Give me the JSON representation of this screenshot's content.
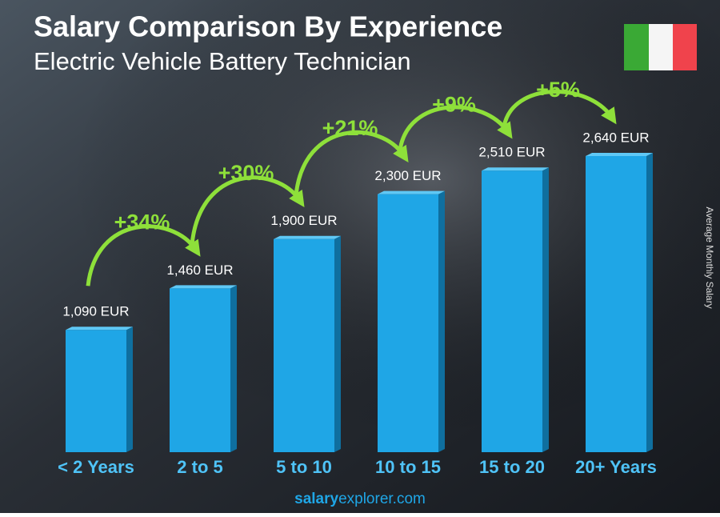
{
  "chart_data": {
    "type": "bar",
    "title": "Salary Comparison By Experience",
    "subtitle": "Electric Vehicle Battery Technician",
    "y_axis_label": "Average Monthly Salary",
    "categories": [
      "< 2 Years",
      "2 to 5",
      "5 to 10",
      "10 to 15",
      "15 to 20",
      "20+ Years"
    ],
    "values": [
      1090,
      1460,
      1900,
      2300,
      2510,
      2640
    ],
    "value_labels": [
      "1,090 EUR",
      "1,460 EUR",
      "1,900 EUR",
      "2,300 EUR",
      "2,510 EUR",
      "2,640 EUR"
    ],
    "color": "#1fa6e6",
    "changes": [
      "+34%",
      "+30%",
      "+21%",
      "+9%",
      "+5%"
    ],
    "footer": {
      "bold": "salary",
      "regular": "explorer.com"
    }
  }
}
